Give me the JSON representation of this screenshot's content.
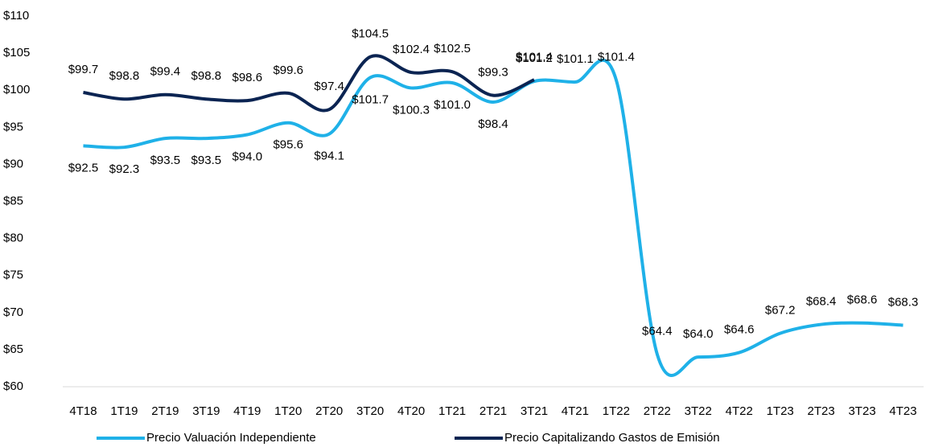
{
  "chart_data": {
    "type": "line",
    "categories": [
      "4T18",
      "1T19",
      "2T19",
      "3T19",
      "4T19",
      "1T20",
      "2T20",
      "3T20",
      "4T20",
      "1T21",
      "2T21",
      "3T21",
      "4T21",
      "1T22",
      "2T22",
      "3T22",
      "4T22",
      "1T23",
      "2T23",
      "3T23",
      "4T23"
    ],
    "series": [
      {
        "name": "Precio Valuación Independiente",
        "color": "#1fb1e8",
        "values": [
          92.5,
          92.3,
          93.5,
          93.5,
          94.0,
          95.6,
          94.1,
          101.7,
          100.3,
          101.0,
          98.4,
          101.2,
          101.1,
          101.4,
          64.4,
          64.0,
          64.6,
          67.2,
          68.4,
          68.6,
          68.3
        ],
        "value_labels": [
          "$92.5",
          "$92.3",
          "$93.5",
          "$93.5",
          "$94.0",
          "$95.6",
          "$94.1",
          "$101.7",
          "$100.3",
          "$101.0",
          "$98.4",
          "$101.2",
          "$101.1",
          "$101.4",
          "$64.4",
          "$64.0",
          "$64.6",
          "$67.2",
          "$68.4",
          "$68.6",
          "$68.3"
        ]
      },
      {
        "name": "Precio Capitalizando Gastos de Emisión",
        "color": "#0b2452",
        "values": [
          99.7,
          98.8,
          99.4,
          98.8,
          98.6,
          99.6,
          97.4,
          104.5,
          102.4,
          102.5,
          99.3,
          101.4,
          null,
          null,
          null,
          null,
          null,
          null,
          null,
          null,
          null
        ],
        "value_labels": [
          "$99.7",
          "$98.8",
          "$99.4",
          "$98.8",
          "$98.6",
          "$99.6",
          "$97.4",
          "$104.5",
          "$102.4",
          "$102.5",
          "$99.3",
          "$101.4",
          null,
          null,
          null,
          null,
          null,
          null,
          null,
          null,
          null
        ]
      }
    ],
    "ylim": [
      60,
      110
    ],
    "yticks": [
      {
        "value": 60,
        "label": "$60"
      },
      {
        "value": 65,
        "label": "$65"
      },
      {
        "value": 70,
        "label": "$70"
      },
      {
        "value": 75,
        "label": "$75"
      },
      {
        "value": 80,
        "label": "$80"
      },
      {
        "value": 85,
        "label": "$85"
      },
      {
        "value": 90,
        "label": "$90"
      },
      {
        "value": 95,
        "label": "$95"
      },
      {
        "value": 100,
        "label": "$100"
      },
      {
        "value": 105,
        "label": "$105"
      },
      {
        "value": 110,
        "label": "$110"
      }
    ],
    "grid": false,
    "legend": "bottom"
  }
}
